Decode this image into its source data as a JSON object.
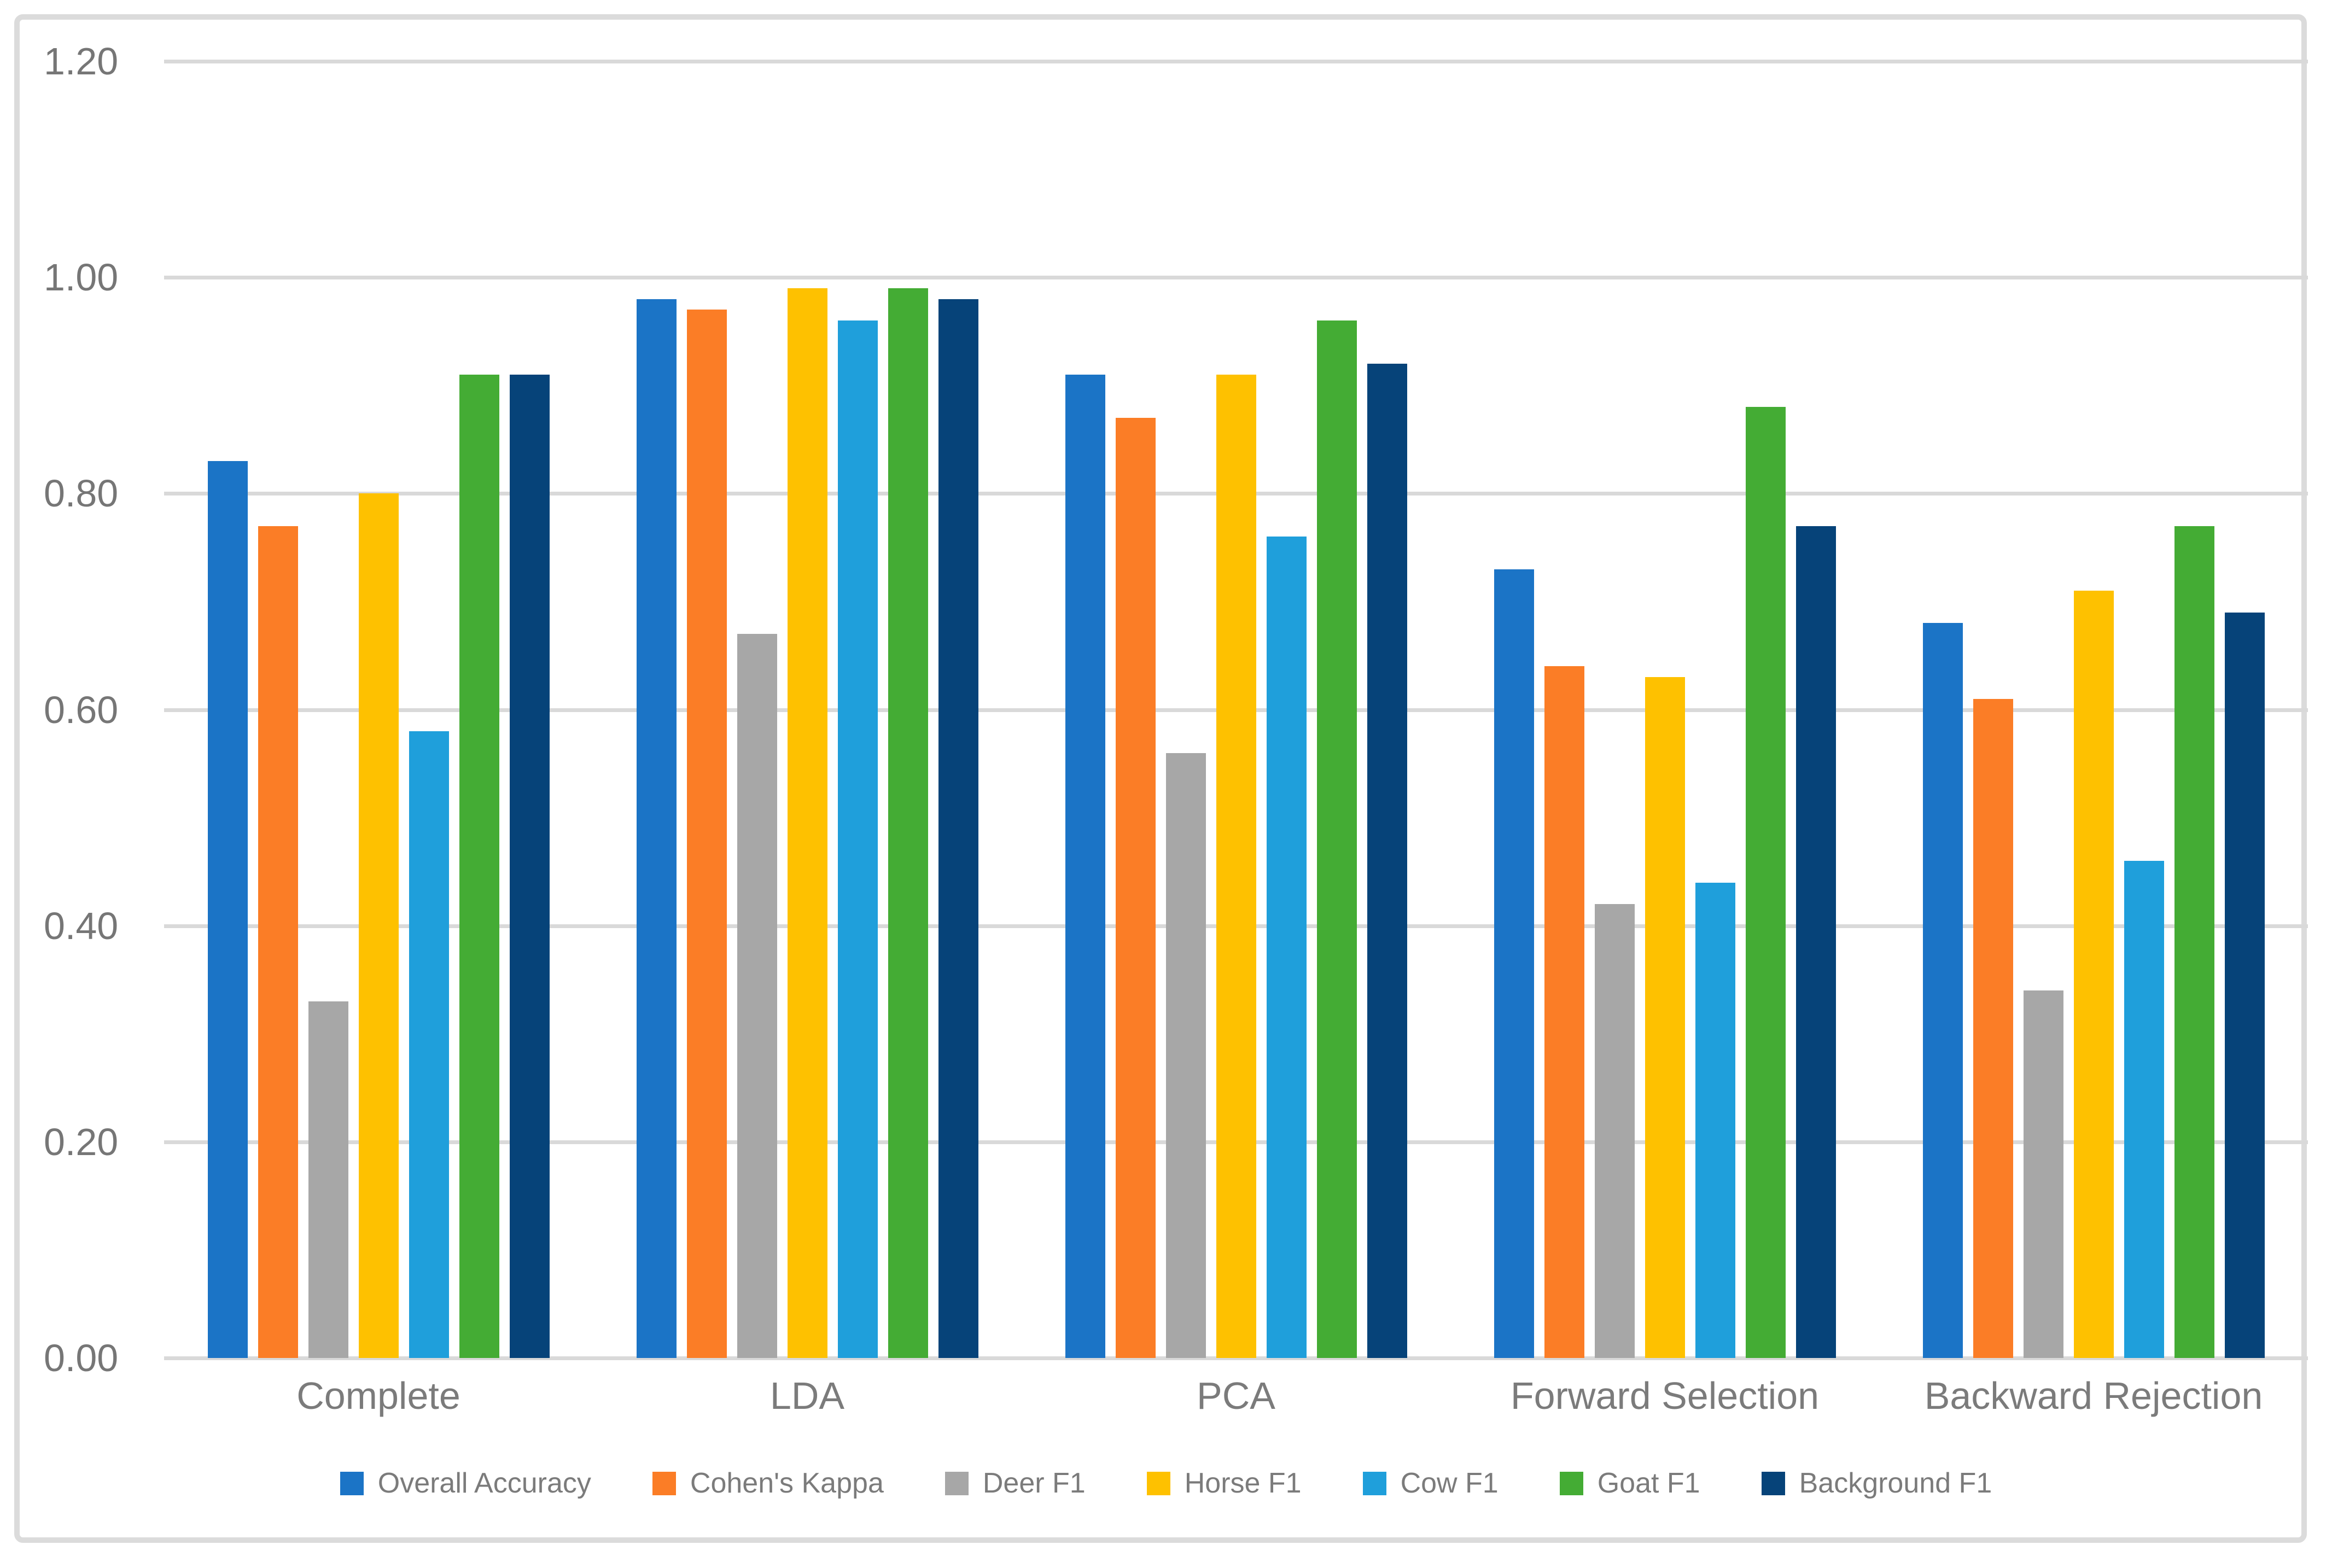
{
  "chart_data": {
    "type": "bar",
    "title": "",
    "xlabel": "",
    "ylabel": "",
    "categories": [
      "Complete",
      "LDA",
      "PCA",
      "Forward Selection",
      "Backward Rejection"
    ],
    "series": [
      {
        "name": "Overall Accuracy",
        "color": "#1B74C6",
        "values": [
          0.83,
          0.98,
          0.91,
          0.73,
          0.68
        ]
      },
      {
        "name": "Cohen's Kappa",
        "color": "#FB7D26",
        "values": [
          0.77,
          0.97,
          0.87,
          0.64,
          0.61
        ]
      },
      {
        "name": "Deer F1",
        "color": "#A7A7A7",
        "values": [
          0.33,
          0.67,
          0.56,
          0.42,
          0.34
        ]
      },
      {
        "name": "Horse F1",
        "color": "#FEC100",
        "values": [
          0.8,
          0.99,
          0.91,
          0.63,
          0.71
        ]
      },
      {
        "name": "Cow F1",
        "color": "#1F9FDB",
        "values": [
          0.58,
          0.96,
          0.76,
          0.44,
          0.46
        ]
      },
      {
        "name": "Goat F1",
        "color": "#44AC34",
        "values": [
          0.91,
          0.99,
          0.96,
          0.88,
          0.77
        ]
      },
      {
        "name": "Background F1",
        "color": "#064379",
        "values": [
          0.91,
          0.98,
          0.92,
          0.77,
          0.69
        ]
      }
    ],
    "ylim": [
      0,
      1.2
    ],
    "ytick_step": 0.2,
    "ytick_labels": [
      "0.00",
      "0.20",
      "0.40",
      "0.60",
      "0.80",
      "1.00",
      "1.20"
    ],
    "grid": true,
    "legend_position": "bottom",
    "gridline_color": "#D9D9D9",
    "frame_border_color": "#DBDBDB",
    "axis_text_color": "#767676",
    "label_text_color": "#7B7B7B",
    "background_color": "#FFFFFF"
  }
}
